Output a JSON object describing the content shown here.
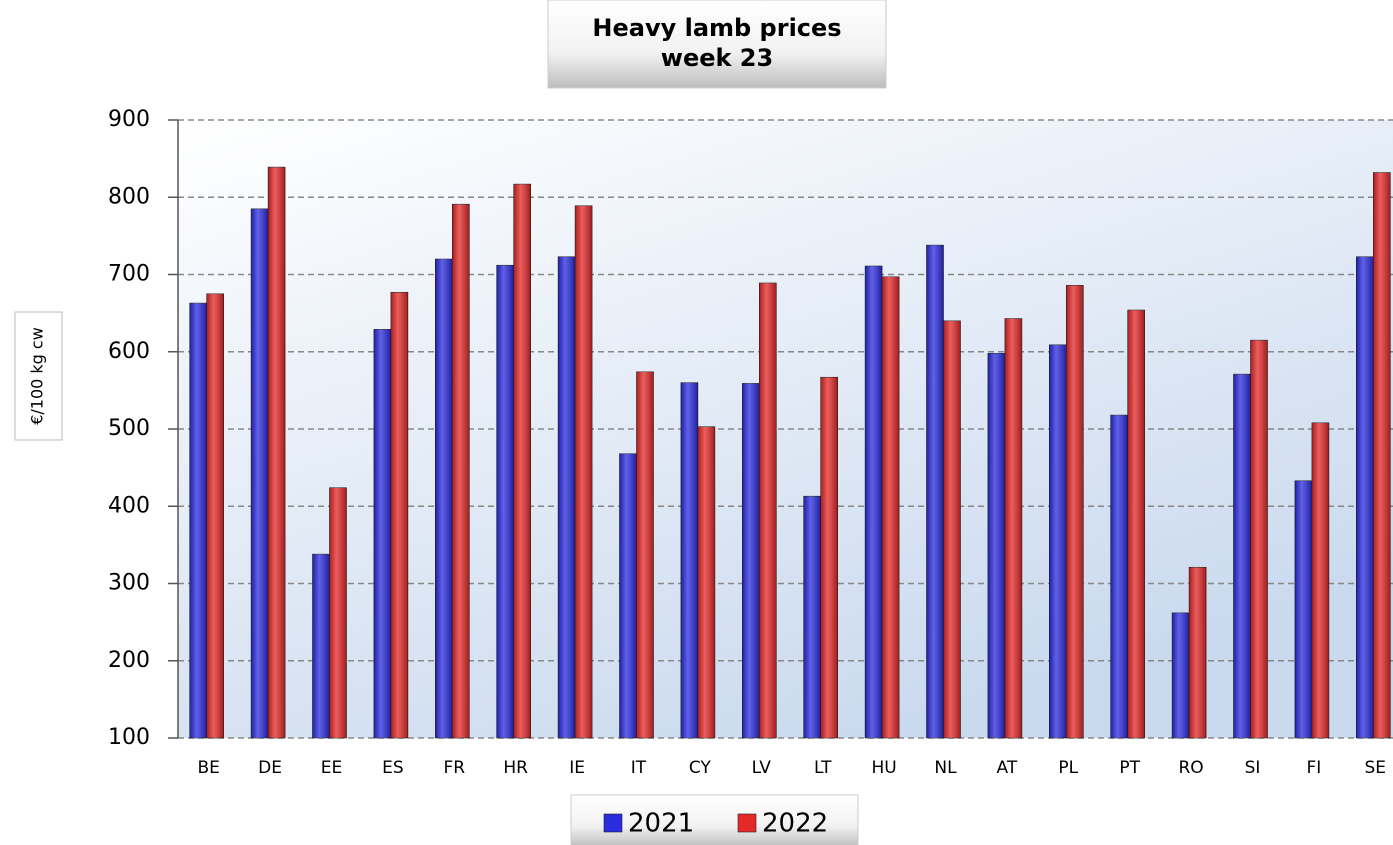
{
  "chart_data": {
    "type": "bar",
    "title": "Heavy lamb prices\nweek 23",
    "y_label": "€/100 kg cw",
    "categories": [
      "BE",
      "DE",
      "EE",
      "ES",
      "FR",
      "HR",
      "IE",
      "IT",
      "CY",
      "LV",
      "LT",
      "HU",
      "NL",
      "AT",
      "PL",
      "PT",
      "RO",
      "SI",
      "FI",
      "SE"
    ],
    "series": [
      {
        "name": "2021",
        "color": "#2b2be0",
        "values": [
          663,
          785,
          338,
          629,
          720,
          712,
          723,
          468,
          560,
          559,
          413,
          711,
          738,
          598,
          609,
          518,
          262,
          571,
          433,
          723
        ]
      },
      {
        "name": "2022",
        "color": "#e52828",
        "values": [
          675,
          839,
          424,
          677,
          791,
          817,
          789,
          574,
          503,
          689,
          567,
          697,
          640,
          643,
          686,
          654,
          321,
          615,
          508,
          832
        ]
      }
    ],
    "ylim": [
      100,
      900
    ],
    "yticks": [
      100,
      200,
      300,
      400,
      500,
      600,
      700,
      800,
      900
    ],
    "grid": true,
    "legend": "bottom"
  }
}
